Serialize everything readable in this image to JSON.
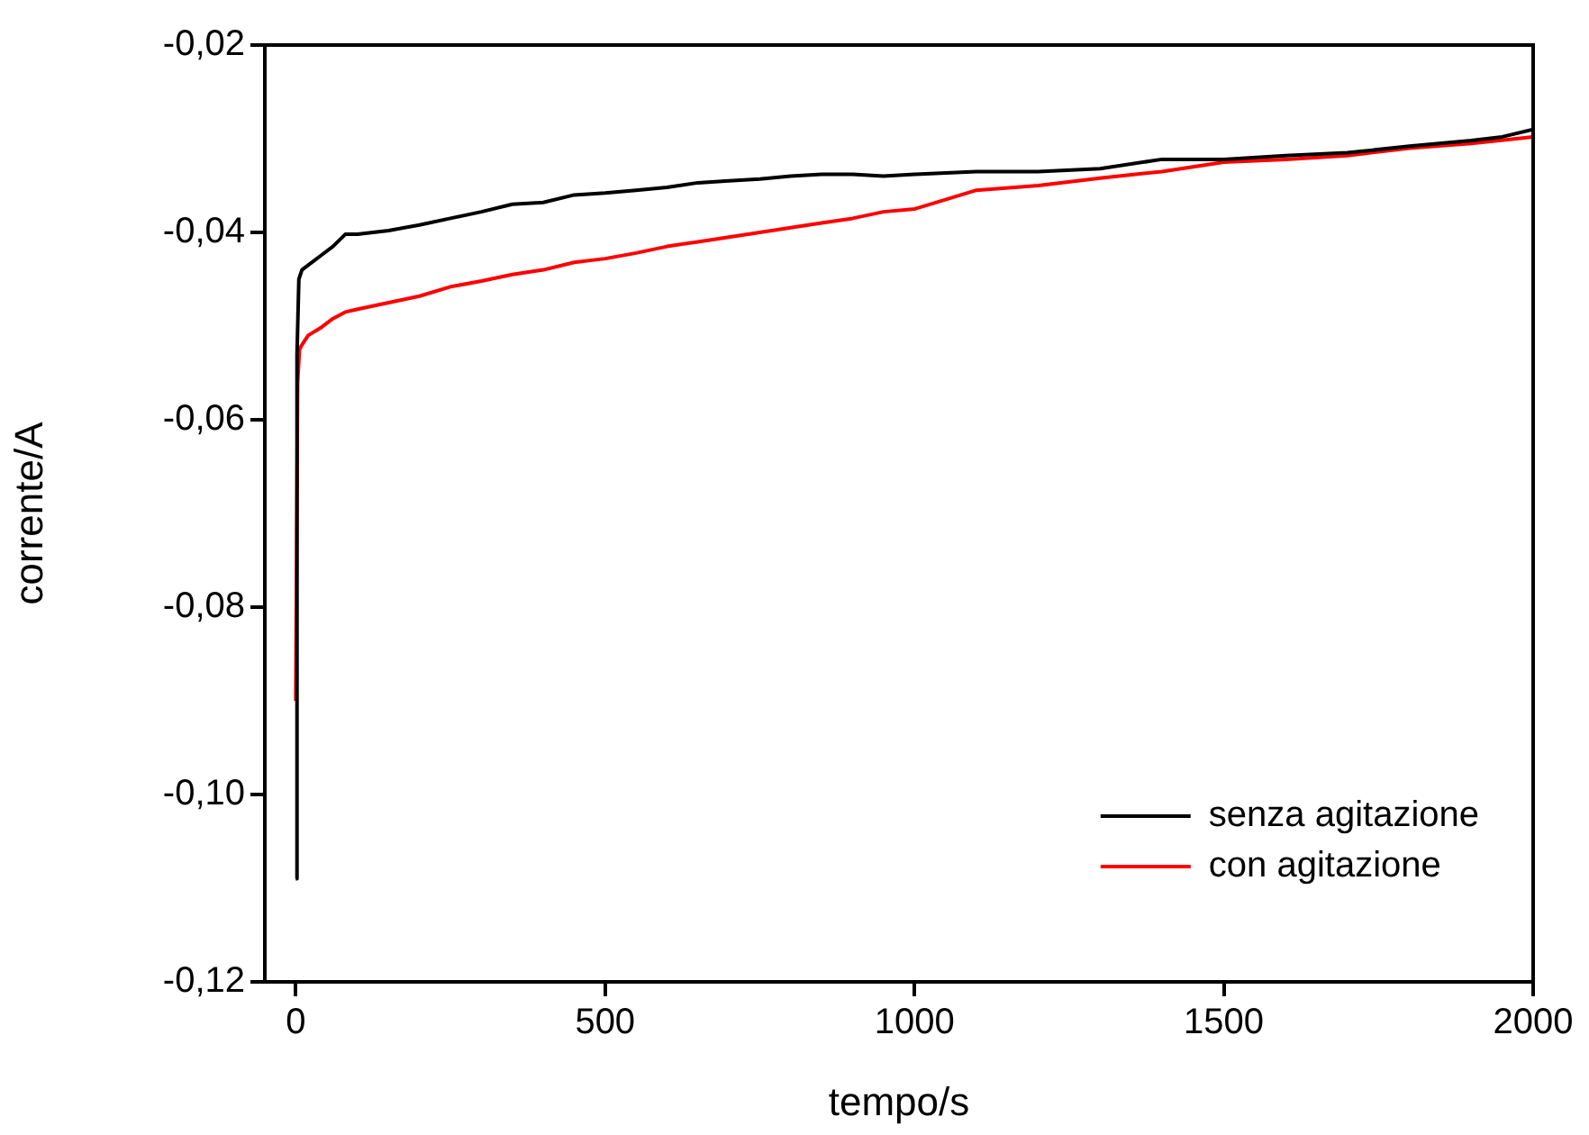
{
  "chart_data": {
    "type": "line",
    "xlabel": "tempo/s",
    "ylabel": "corrente/A",
    "xlim": [
      -50,
      2000
    ],
    "xticks": [
      0,
      500,
      1000,
      1500,
      2000
    ],
    "ylim": [
      -0.12,
      -0.02
    ],
    "yticks": [
      {
        "value": -0.12,
        "label": "-0,12"
      },
      {
        "value": -0.1,
        "label": "-0,10"
      },
      {
        "value": -0.08,
        "label": "-0,08"
      },
      {
        "value": -0.06,
        "label": "-0,06"
      },
      {
        "value": -0.04,
        "label": "-0,04"
      },
      {
        "value": -0.02,
        "label": "-0,02"
      }
    ],
    "grid": false,
    "legend": "bottom right",
    "marker": "none",
    "line_style": "solid",
    "series": [
      {
        "name": "senza agitazione",
        "color": "#000000",
        "x": [
          0,
          2,
          5,
          10,
          20,
          40,
          60,
          80,
          100,
          150,
          200,
          250,
          300,
          350,
          400,
          450,
          500,
          550,
          600,
          650,
          700,
          750,
          800,
          850,
          900,
          950,
          1000,
          1100,
          1200,
          1300,
          1400,
          1500,
          1600,
          1700,
          1800,
          1900,
          1950,
          2000
        ],
        "values": [
          -0.109,
          -0.053,
          -0.045,
          -0.044,
          -0.0435,
          -0.0425,
          -0.0415,
          -0.0402,
          -0.0402,
          -0.0398,
          -0.0392,
          -0.0385,
          -0.0378,
          -0.037,
          -0.0368,
          -0.036,
          -0.0358,
          -0.0355,
          -0.0352,
          -0.0347,
          -0.0345,
          -0.0343,
          -0.034,
          -0.0338,
          -0.0338,
          -0.034,
          -0.0338,
          -0.0335,
          -0.0335,
          -0.0332,
          -0.0322,
          -0.0322,
          -0.0318,
          -0.0315,
          -0.0308,
          -0.0302,
          -0.0298,
          -0.029
        ]
      },
      {
        "name": "con agitazione",
        "color": "#ff0000",
        "x": [
          0,
          3,
          6,
          10,
          20,
          40,
          60,
          80,
          100,
          150,
          200,
          250,
          300,
          350,
          400,
          450,
          500,
          550,
          600,
          650,
          700,
          750,
          800,
          850,
          900,
          950,
          1000,
          1050,
          1100,
          1200,
          1300,
          1400,
          1500,
          1600,
          1700,
          1800,
          1900,
          2000
        ],
        "values": [
          -0.09,
          -0.056,
          -0.0525,
          -0.052,
          -0.051,
          -0.0502,
          -0.0492,
          -0.0485,
          -0.0482,
          -0.0475,
          -0.0468,
          -0.0458,
          -0.0452,
          -0.0445,
          -0.044,
          -0.0432,
          -0.0428,
          -0.0422,
          -0.0415,
          -0.041,
          -0.0405,
          -0.04,
          -0.0395,
          -0.039,
          -0.0385,
          -0.0378,
          -0.0375,
          -0.0365,
          -0.0355,
          -0.035,
          -0.0342,
          -0.0335,
          -0.0325,
          -0.0322,
          -0.0318,
          -0.031,
          -0.0305,
          -0.0298
        ]
      }
    ]
  }
}
